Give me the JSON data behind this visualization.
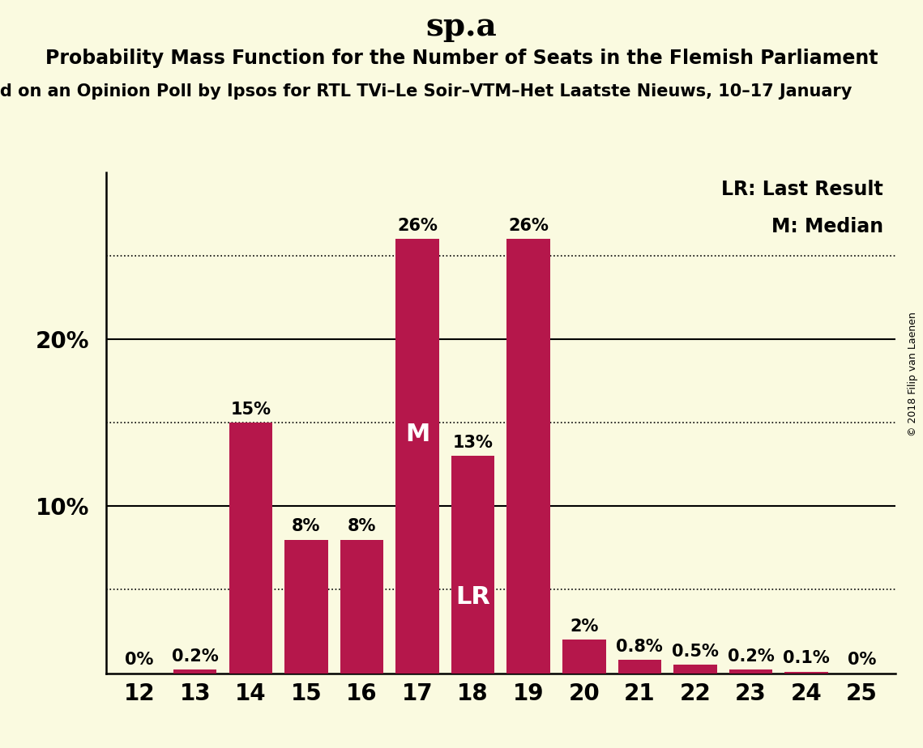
{
  "title": "sp.a",
  "subtitle": "Probability Mass Function for the Number of Seats in the Flemish Parliament",
  "subtitle2": "d on an Opinion Poll by Ipsos for RTL TVi–Le Soir–VTM–Het Laatste Nieuws, 10–17 January",
  "copyright": "© 2018 Filip van Laenen",
  "categories": [
    12,
    13,
    14,
    15,
    16,
    17,
    18,
    19,
    20,
    21,
    22,
    23,
    24,
    25
  ],
  "values": [
    0.0,
    0.2,
    15.0,
    8.0,
    8.0,
    26.0,
    13.0,
    26.0,
    2.0,
    0.8,
    0.5,
    0.2,
    0.1,
    0.0
  ],
  "labels": [
    "0%",
    "0.2%",
    "15%",
    "8%",
    "8%",
    "26%",
    "13%",
    "26%",
    "2%",
    "0.8%",
    "0.5%",
    "0.2%",
    "0.1%",
    "0%"
  ],
  "bar_color": "#b5174b",
  "background_color": "#fafae0",
  "median_seat": 17,
  "lr_seat": 18,
  "legend_lr": "LR: Last Result",
  "legend_m": "M: Median",
  "yticks": [
    10,
    20
  ],
  "ytick_labels": [
    "10%",
    "20%"
  ],
  "dotted_lines": [
    5,
    15,
    25
  ],
  "solid_lines": [
    10,
    20
  ],
  "ylim_max": 30,
  "title_fontsize": 28,
  "subtitle_fontsize": 17,
  "subtitle2_fontsize": 15,
  "bar_label_fontsize": 15,
  "inner_label_fontsize": 22,
  "legend_fontsize": 17,
  "tick_fontsize": 20,
  "copyright_fontsize": 9
}
